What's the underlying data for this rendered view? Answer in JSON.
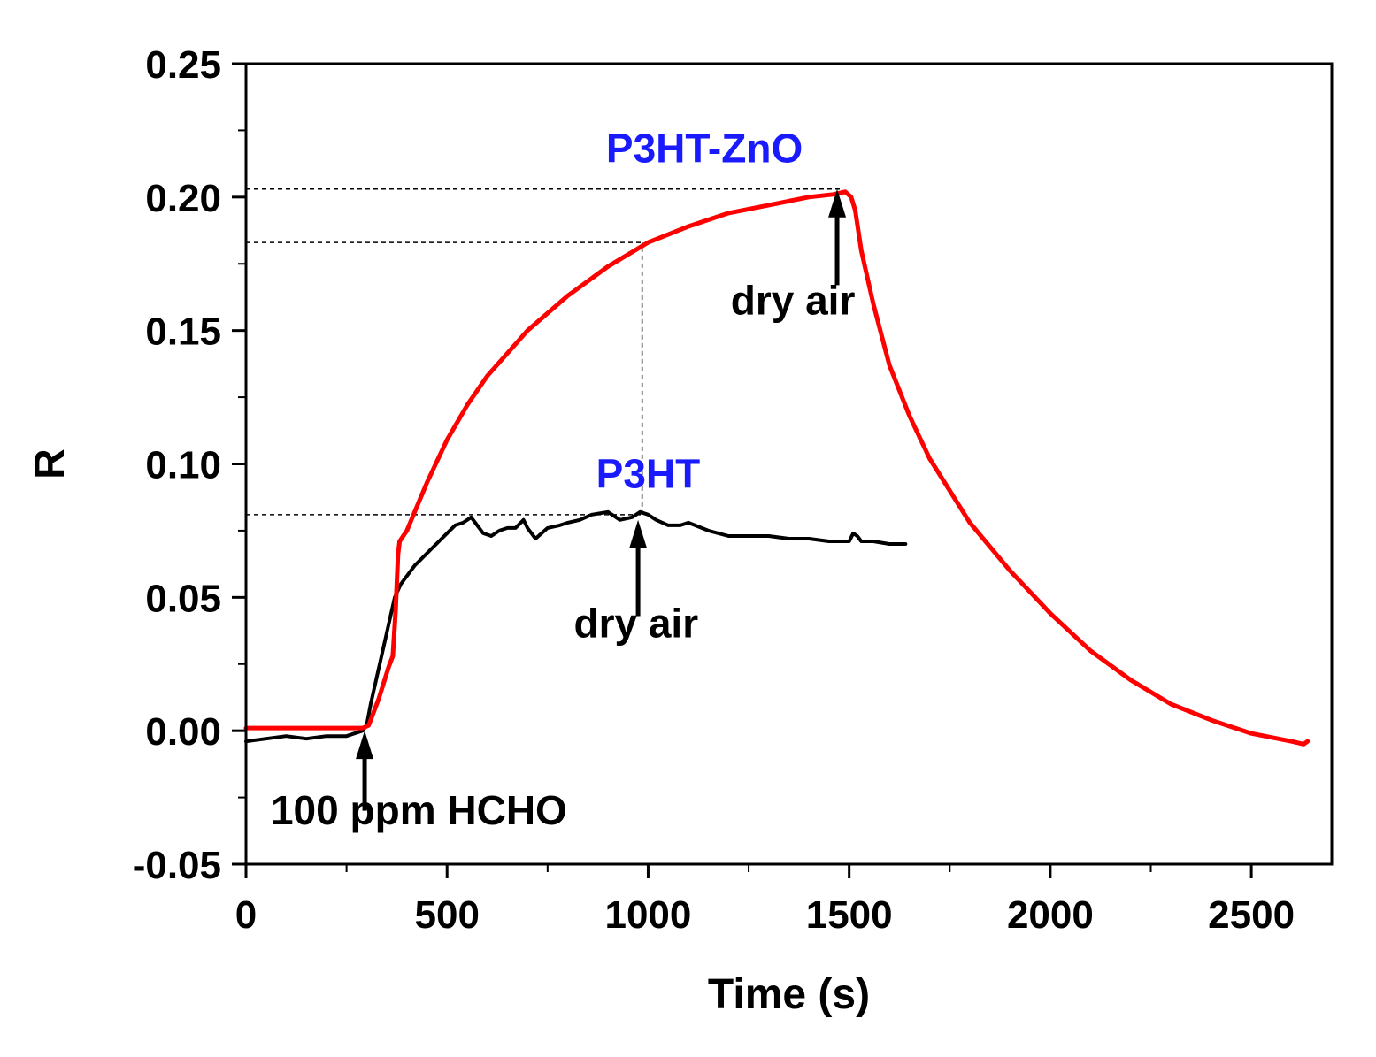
{
  "chart_data": {
    "type": "line",
    "title": "",
    "xlabel": "Time (s)",
    "ylabel": "R",
    "xlim": [
      0,
      2700
    ],
    "ylim": [
      -0.05,
      0.25
    ],
    "x_ticks": [
      0,
      500,
      1000,
      1500,
      2000,
      2500
    ],
    "x_tick_labels": [
      "0",
      "500",
      "1000",
      "1500",
      "2000",
      "2500"
    ],
    "y_ticks": [
      -0.05,
      0,
      0.05,
      0.1,
      0.15,
      0.2,
      0.25
    ],
    "y_tick_labels": [
      "-0.05",
      "0.00",
      "0.05",
      "0.10",
      "0.15",
      "0.20",
      "0.25"
    ],
    "grid": false,
    "series": [
      {
        "name": "P3HT-ZnO",
        "color": "#ff0000",
        "x": [
          0,
          100,
          200,
          290,
          305,
          330,
          355,
          365,
          372,
          378,
          382,
          400,
          450,
          500,
          550,
          600,
          700,
          800,
          900,
          1000,
          1100,
          1200,
          1300,
          1400,
          1460,
          1490,
          1505,
          1515,
          1530,
          1560,
          1600,
          1650,
          1700,
          1800,
          1900,
          2000,
          2100,
          2200,
          2300,
          2400,
          2500,
          2600,
          2630,
          2640
        ],
        "y": [
          0.001,
          0.001,
          0.001,
          0.001,
          0.002,
          0.012,
          0.024,
          0.028,
          0.045,
          0.066,
          0.071,
          0.075,
          0.093,
          0.109,
          0.122,
          0.133,
          0.15,
          0.163,
          0.174,
          0.183,
          0.189,
          0.194,
          0.197,
          0.2,
          0.201,
          0.202,
          0.2,
          0.195,
          0.18,
          0.16,
          0.137,
          0.118,
          0.102,
          0.078,
          0.06,
          0.044,
          0.03,
          0.019,
          0.01,
          0.004,
          -0.001,
          -0.004,
          -0.005,
          -0.004
        ]
      },
      {
        "name": "P3HT",
        "color": "#000000",
        "x": [
          0,
          50,
          100,
          150,
          200,
          250,
          290,
          300,
          310,
          325,
          340,
          355,
          370,
          385,
          400,
          420,
          440,
          460,
          480,
          500,
          520,
          540,
          560,
          575,
          590,
          610,
          630,
          650,
          670,
          690,
          700,
          720,
          750,
          780,
          800,
          830,
          860,
          900,
          930,
          960,
          980,
          1000,
          1020,
          1050,
          1080,
          1100,
          1150,
          1200,
          1250,
          1300,
          1350,
          1400,
          1450,
          1500,
          1510,
          1520,
          1530,
          1560,
          1600,
          1640
        ],
        "y": [
          -0.004,
          -0.003,
          -0.002,
          -0.003,
          -0.002,
          -0.002,
          0.0,
          0.002,
          0.01,
          0.02,
          0.03,
          0.04,
          0.05,
          0.055,
          0.058,
          0.062,
          0.065,
          0.068,
          0.071,
          0.074,
          0.077,
          0.078,
          0.08,
          0.077,
          0.074,
          0.073,
          0.075,
          0.076,
          0.076,
          0.079,
          0.076,
          0.072,
          0.076,
          0.077,
          0.078,
          0.079,
          0.081,
          0.082,
          0.079,
          0.08,
          0.082,
          0.081,
          0.079,
          0.077,
          0.077,
          0.078,
          0.075,
          0.073,
          0.073,
          0.073,
          0.072,
          0.072,
          0.071,
          0.071,
          0.074,
          0.073,
          0.071,
          0.071,
          0.07,
          0.07
        ]
      }
    ],
    "reference_lines": [
      {
        "orientation": "horizontal",
        "y": 0.203,
        "x_from": 0,
        "x_to": 1480
      },
      {
        "orientation": "horizontal",
        "y": 0.183,
        "x_from": 0,
        "x_to": 985
      },
      {
        "orientation": "horizontal",
        "y": 0.081,
        "x_from": 0,
        "x_to": 985
      },
      {
        "orientation": "vertical",
        "x": 985,
        "y_from": 0.081,
        "y_to": 0.183
      }
    ],
    "annotations": [
      {
        "id": "label-p3ht-zno",
        "text": "P3HT-ZnO",
        "color": "#1a1aff",
        "x": 1140,
        "y": 0.213
      },
      {
        "id": "label-p3ht",
        "text": "P3HT",
        "color": "#1a1aff",
        "x": 1000,
        "y": 0.091
      },
      {
        "id": "label-dry-air-1",
        "text": "dry air",
        "color": "#000000",
        "x": 1360,
        "y": 0.156
      },
      {
        "id": "label-dry-air-2",
        "text": "dry air",
        "color": "#000000",
        "x": 970,
        "y": 0.035
      },
      {
        "id": "label-hcho",
        "text": "100 ppm HCHO",
        "color": "#000000",
        "x": 430,
        "y": -0.035
      }
    ],
    "arrows": [
      {
        "id": "arrow-hcho",
        "x": 295,
        "y_tail": -0.03,
        "y_head": 0.0
      },
      {
        "id": "arrow-dry-air-p3ht",
        "x": 975,
        "y_tail": 0.043,
        "y_head": 0.079
      },
      {
        "id": "arrow-dry-air-p3htzno",
        "x": 1470,
        "y_tail": 0.167,
        "y_head": 0.203
      }
    ]
  }
}
